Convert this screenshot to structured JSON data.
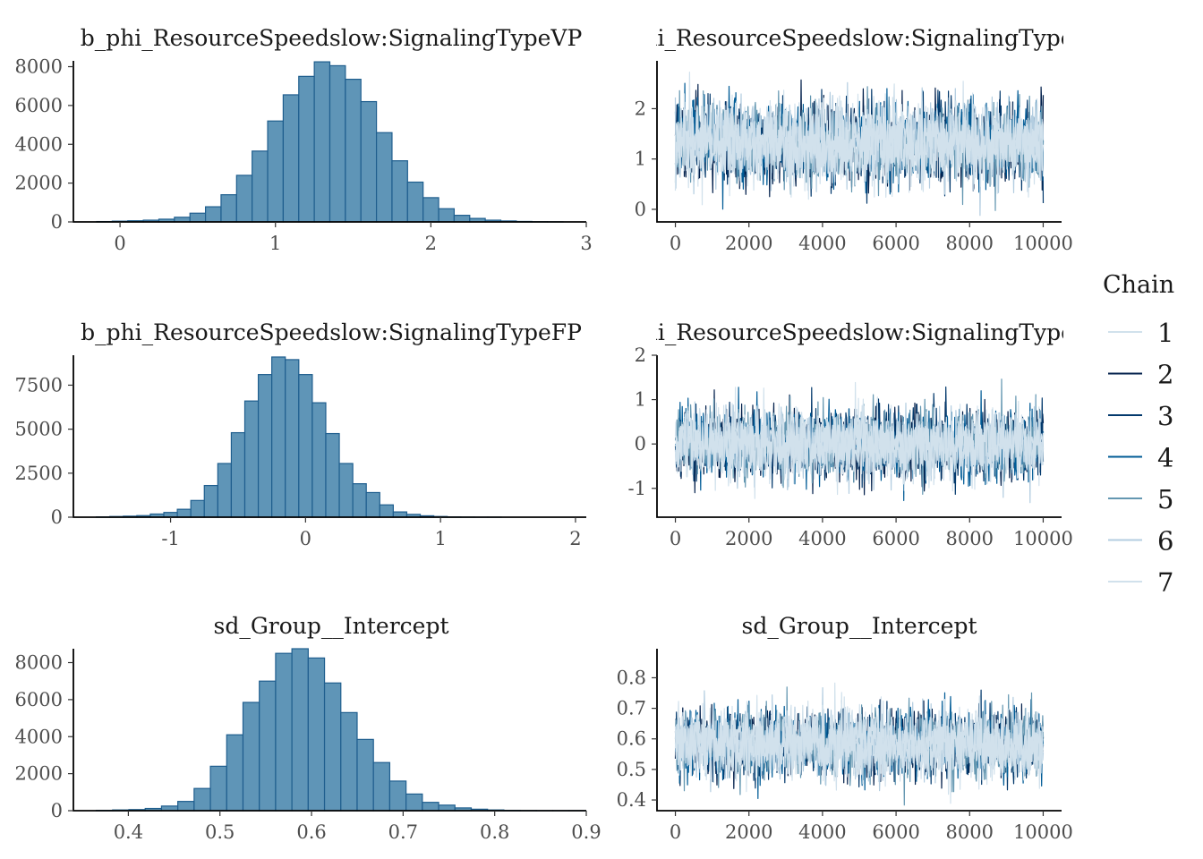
{
  "chart_data": [
    {
      "type": "bar",
      "kind": "histogram",
      "title": "b_phi_ResourceSpeedslow:SignalingTypeVP",
      "bin_start": -0.15,
      "bin_width": 0.1,
      "values": [
        20,
        40,
        60,
        90,
        140,
        240,
        450,
        780,
        1400,
        2400,
        3650,
        5200,
        6550,
        7500,
        8250,
        8050,
        7350,
        6200,
        4600,
        3150,
        2050,
        1250,
        680,
        340,
        180,
        90,
        50,
        25,
        10,
        5
      ],
      "xlim": [
        -0.3,
        3.0
      ],
      "ylim": [
        0,
        8300
      ],
      "x_ticks": [
        0,
        1,
        2,
        3
      ],
      "x_tick_labels": [
        "0",
        "1",
        "2",
        "3"
      ],
      "y_ticks": [
        0,
        2000,
        4000,
        6000,
        8000
      ],
      "y_tick_labels": [
        "0",
        "2000",
        "4000",
        "6000",
        "8000"
      ]
    },
    {
      "type": "line",
      "kind": "trace",
      "title": "phi_ResourceSpeedslow:SignalingTypeV",
      "center": 1.32,
      "sd": 0.4,
      "min": -0.12,
      "max": 2.82,
      "xlim": [
        -500,
        10500
      ],
      "ylim": [
        -0.25,
        2.95
      ],
      "x_ticks": [
        0,
        2000,
        4000,
        6000,
        8000,
        10000
      ],
      "x_tick_labels": [
        "0",
        "2000",
        "4000",
        "6000",
        "8000",
        "10000"
      ],
      "y_ticks": [
        0,
        1,
        2
      ],
      "y_tick_labels": [
        "0",
        "1",
        "2"
      ]
    },
    {
      "type": "bar",
      "kind": "histogram",
      "title": "b_phi_ResourceSpeedslow:SignalingTypeFP",
      "bin_start": -1.55,
      "bin_width": 0.1,
      "values": [
        20,
        40,
        60,
        90,
        180,
        270,
        450,
        950,
        1800,
        3050,
        4800,
        6600,
        8100,
        9100,
        8950,
        8100,
        6500,
        4750,
        3050,
        1900,
        1400,
        700,
        300,
        160,
        80,
        40,
        20,
        10,
        5,
        5
      ],
      "xlim": [
        -1.72,
        2.08
      ],
      "ylim": [
        0,
        9200
      ],
      "x_ticks": [
        -1,
        0,
        1,
        2
      ],
      "x_tick_labels": [
        "-1",
        "0",
        "1",
        "2"
      ],
      "y_ticks": [
        0,
        2500,
        5000,
        7500
      ],
      "y_tick_labels": [
        "0",
        "2500",
        "5000",
        "7500"
      ]
    },
    {
      "type": "line",
      "kind": "trace",
      "title": "phi_ResourceSpeedslow:SignalingTypeF",
      "center": 0.0,
      "sd": 0.38,
      "min": -1.5,
      "max": 1.82,
      "xlim": [
        -500,
        10500
      ],
      "ylim": [
        -1.65,
        2.0
      ],
      "x_ticks": [
        0,
        2000,
        4000,
        6000,
        8000,
        10000
      ],
      "x_tick_labels": [
        "0",
        "2000",
        "4000",
        "6000",
        "8000",
        "10000"
      ],
      "y_ticks": [
        -1,
        0,
        1,
        2
      ],
      "y_tick_labels": [
        "-1",
        "0",
        "1",
        "2"
      ]
    },
    {
      "type": "bar",
      "kind": "histogram",
      "title": "sd_Group__Intercept",
      "bin_start": 0.365,
      "bin_width": 0.0178,
      "values": [
        20,
        40,
        60,
        120,
        250,
        500,
        1200,
        2400,
        4100,
        5850,
        7000,
        8500,
        8750,
        8250,
        6900,
        5300,
        3850,
        2600,
        1600,
        900,
        450,
        300,
        150,
        80,
        40,
        20,
        10,
        5,
        5,
        5
      ],
      "xlim": [
        0.34,
        0.9
      ],
      "ylim": [
        0,
        8750
      ],
      "x_ticks": [
        0.4,
        0.5,
        0.6,
        0.7,
        0.8,
        0.9
      ],
      "x_tick_labels": [
        "0.4",
        "0.5",
        "0.6",
        "0.7",
        "0.8",
        "0.9"
      ],
      "y_ticks": [
        0,
        2000,
        4000,
        6000,
        8000
      ],
      "y_tick_labels": [
        "0",
        "2000",
        "4000",
        "6000",
        "8000"
      ]
    },
    {
      "type": "line",
      "kind": "trace",
      "title": "sd_Group__Intercept",
      "center": 0.585,
      "sd": 0.055,
      "min": 0.38,
      "max": 0.87,
      "xlim": [
        -500,
        10500
      ],
      "ylim": [
        0.365,
        0.895
      ],
      "x_ticks": [
        0,
        2000,
        4000,
        6000,
        8000,
        10000
      ],
      "x_tick_labels": [
        "0",
        "2000",
        "4000",
        "6000",
        "8000",
        "10000"
      ],
      "y_ticks": [
        0.4,
        0.5,
        0.6,
        0.7,
        0.8
      ],
      "y_tick_labels": [
        "0.4",
        "0.5",
        "0.6",
        "0.7",
        "0.8"
      ]
    }
  ],
  "legend": {
    "title": "Chain",
    "placement": "right",
    "items": [
      {
        "label": "1",
        "color": "#d1e1ec"
      },
      {
        "label": "2",
        "color": "#011f4b"
      },
      {
        "label": "3",
        "color": "#03396c"
      },
      {
        "label": "4",
        "color": "#005b96"
      },
      {
        "label": "5",
        "color": "#6497b1"
      },
      {
        "label": "6",
        "color": "#b3cde0"
      },
      {
        "label": "7",
        "color": "#d1e1ec"
      }
    ]
  }
}
